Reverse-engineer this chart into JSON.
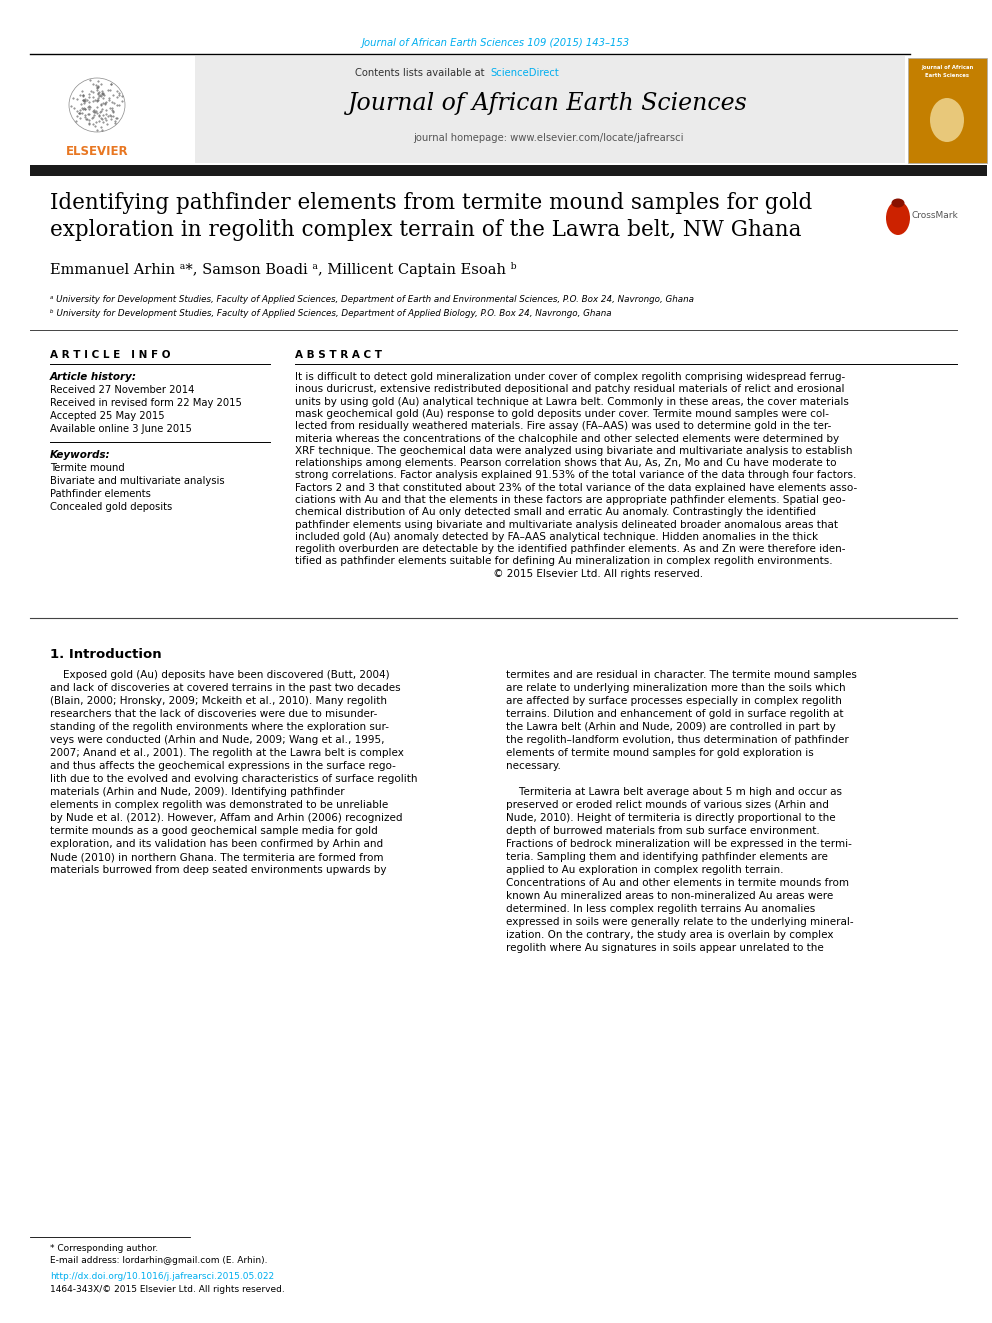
{
  "bg_color": "#ffffff",
  "cyan_color": "#00AEEF",
  "orange_color": "#E87722",
  "dark_color": "#1a1a1a",
  "gray_bg": "#ebebeb",
  "journal_ref": "Journal of African Earth Sciences 109 (2015) 143–153",
  "journal_name": "Journal of African Earth Sciences",
  "contents_before": "Contents lists available at ",
  "sciencedirect": "ScienceDirect",
  "homepage": "journal homepage: www.elsevier.com/locate/jafrearsci",
  "title_line1": "Identifying pathfinder elements from termite mound samples for gold",
  "title_line2": "exploration in regolith complex terrain of the Lawra belt, NW Ghana",
  "authors_line": "Emmanuel Arhin ᵃ*, Samson Boadi ᵃ, Millicent Captain Esoah ᵇ",
  "affil_a": "ᵃ University for Development Studies, Faculty of Applied Sciences, Department of Earth and Environmental Sciences, P.O. Box 24, Navrongo, Ghana",
  "affil_b": "ᵇ University for Development Studies, Faculty of Applied Sciences, Department of Applied Biology, P.O. Box 24, Navrongo, Ghana",
  "art_info_hdr": "A R T I C L E   I N F O",
  "abstract_hdr": "A B S T R A C T",
  "art_history_lbl": "Article history:",
  "received1": "Received 27 November 2014",
  "received2": "Received in revised form 22 May 2015",
  "accepted": "Accepted 25 May 2015",
  "online": "Available online 3 June 2015",
  "keywords_lbl": "Keywords:",
  "kw1": "Termite mound",
  "kw2": "Bivariate and multivariate analysis",
  "kw3": "Pathfinder elements",
  "kw4": "Concealed gold deposits",
  "abstract_lines": [
    "It is difficult to detect gold mineralization under cover of complex regolith comprising widespread ferrug-",
    "inous duricrust, extensive redistributed depositional and patchy residual materials of relict and erosional",
    "units by using gold (Au) analytical technique at Lawra belt. Commonly in these areas, the cover materials",
    "mask geochemical gold (Au) response to gold deposits under cover. Termite mound samples were col-",
    "lected from residually weathered materials. Fire assay (FA–AAS) was used to determine gold in the ter-",
    "miteria whereas the concentrations of the chalcophile and other selected elements were determined by",
    "XRF technique. The geochemical data were analyzed using bivariate and multivariate analysis to establish",
    "relationships among elements. Pearson correlation shows that Au, As, Zn, Mo and Cu have moderate to",
    "strong correlations. Factor analysis explained 91.53% of the total variance of the data through four factors.",
    "Factors 2 and 3 that constituted about 23% of the total variance of the data explained have elements asso-",
    "ciations with Au and that the elements in these factors are appropriate pathfinder elements. Spatial geo-",
    "chemical distribution of Au only detected small and erratic Au anomaly. Contrastingly the identified",
    "pathfinder elements using bivariate and multivariate analysis delineated broader anomalous areas that",
    "included gold (Au) anomaly detected by FA–AAS analytical technique. Hidden anomalies in the thick",
    "regolith overburden are detectable by the identified pathfinder elements. As and Zn were therefore iden-",
    "tified as pathfinder elements suitable for defining Au mineralization in complex regolith environments.",
    "                                                             © 2015 Elsevier Ltd. All rights reserved."
  ],
  "intro_title": "1. Introduction",
  "intro_left": [
    "    Exposed gold (Au) deposits have been discovered (Butt, 2004)",
    "and lack of discoveries at covered terrains in the past two decades",
    "(Blain, 2000; Hronsky, 2009; Mckeith et al., 2010). Many regolith",
    "researchers that the lack of discoveries were due to misunder-",
    "standing of the regolith environments where the exploration sur-",
    "veys were conducted (Arhin and Nude, 2009; Wang et al., 1995,",
    "2007; Anand et al., 2001). The regolith at the Lawra belt is complex",
    "and thus affects the geochemical expressions in the surface rego-",
    "lith due to the evolved and evolving characteristics of surface regolith",
    "materials (Arhin and Nude, 2009). Identifying pathfinder",
    "elements in complex regolith was demonstrated to be unreliable",
    "by Nude et al. (2012). However, Affam and Arhin (2006) recognized",
    "termite mounds as a good geochemical sample media for gold",
    "exploration, and its validation has been confirmed by Arhin and",
    "Nude (2010) in northern Ghana. The termiteria are formed from",
    "materials burrowed from deep seated environments upwards by"
  ],
  "intro_right": [
    "termites and are residual in character. The termite mound samples",
    "are relate to underlying mineralization more than the soils which",
    "are affected by surface processes especially in complex regolith",
    "terrains. Dilution and enhancement of gold in surface regolith at",
    "the Lawra belt (Arhin and Nude, 2009) are controlled in part by",
    "the regolith–landform evolution, thus determination of pathfinder",
    "elements of termite mound samples for gold exploration is",
    "necessary.",
    "",
    "    Termiteria at Lawra belt average about 5 m high and occur as",
    "preserved or eroded relict mounds of various sizes (Arhin and",
    "Nude, 2010). Height of termiteria is directly proportional to the",
    "depth of burrowed materials from sub surface environment.",
    "Fractions of bedrock mineralization will be expressed in the termi-",
    "teria. Sampling them and identifying pathfinder elements are",
    "applied to Au exploration in complex regolith terrain.",
    "Concentrations of Au and other elements in termite mounds from",
    "known Au mineralized areas to non-mineralized Au areas were",
    "determined. In less complex regolith terrains Au anomalies",
    "expressed in soils were generally relate to the underlying mineral-",
    "ization. On the contrary, the study area is overlain by complex",
    "regolith where Au signatures in soils appear unrelated to the"
  ],
  "footnote1": "* Corresponding author.",
  "footnote2": "E-mail address: lordarhin@gmail.com (E. Arhin).",
  "doi": "http://dx.doi.org/10.1016/j.jafrearsci.2015.05.022",
  "issn": "1464-343X/© 2015 Elsevier Ltd. All rights reserved."
}
